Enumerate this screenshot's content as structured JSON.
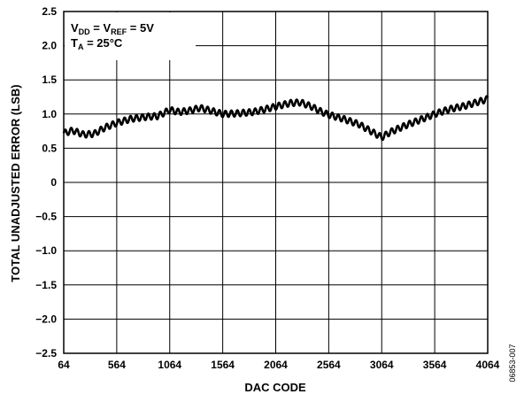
{
  "chart_data": {
    "type": "line",
    "xlabel": "DAC CODE",
    "ylabel": "TOTAL UNADJUSTED ERROR (LSB)",
    "xlim": [
      64,
      4064
    ],
    "ylim": [
      -2.5,
      2.5
    ],
    "x_ticks": [
      "64",
      "564",
      "1064",
      "1564",
      "2064",
      "2564",
      "3064",
      "3564",
      "4064"
    ],
    "y_ticks": [
      "2.5",
      "2.0",
      "1.5",
      "1.0",
      "0.5",
      "0",
      "−0.5",
      "−1.0",
      "−1.5",
      "−2.0",
      "−2.5"
    ],
    "grid": true,
    "annotation": {
      "line1": {
        "a": "V",
        "a_sub": "DD",
        "b": " = V",
        "b_sub": "REF",
        "c": " = 5V"
      },
      "line2": {
        "a": "T",
        "a_sub": "A",
        "b": " = 25°C"
      }
    },
    "figure_id": "06853-007",
    "series": [
      {
        "ripple_amplitude": 0.045,
        "ripple_period_codes": 56,
        "points": [
          [
            64,
            0.72
          ],
          [
            150,
            0.76
          ],
          [
            250,
            0.7
          ],
          [
            350,
            0.71
          ],
          [
            450,
            0.8
          ],
          [
            564,
            0.87
          ],
          [
            700,
            0.93
          ],
          [
            850,
            0.96
          ],
          [
            950,
            0.97
          ],
          [
            1064,
            1.06
          ],
          [
            1150,
            1.03
          ],
          [
            1250,
            1.05
          ],
          [
            1350,
            1.09
          ],
          [
            1450,
            1.05
          ],
          [
            1564,
            1.0
          ],
          [
            1700,
            1.01
          ],
          [
            1850,
            1.03
          ],
          [
            1964,
            1.07
          ],
          [
            2064,
            1.11
          ],
          [
            2200,
            1.16
          ],
          [
            2300,
            1.17
          ],
          [
            2400,
            1.11
          ],
          [
            2500,
            1.03
          ],
          [
            2564,
            0.99
          ],
          [
            2700,
            0.93
          ],
          [
            2850,
            0.85
          ],
          [
            2950,
            0.76
          ],
          [
            3064,
            0.66
          ],
          [
            3150,
            0.74
          ],
          [
            3300,
            0.84
          ],
          [
            3450,
            0.93
          ],
          [
            3564,
            1.0
          ],
          [
            3700,
            1.07
          ],
          [
            3850,
            1.12
          ],
          [
            4000,
            1.19
          ],
          [
            4064,
            1.22
          ]
        ]
      }
    ]
  }
}
